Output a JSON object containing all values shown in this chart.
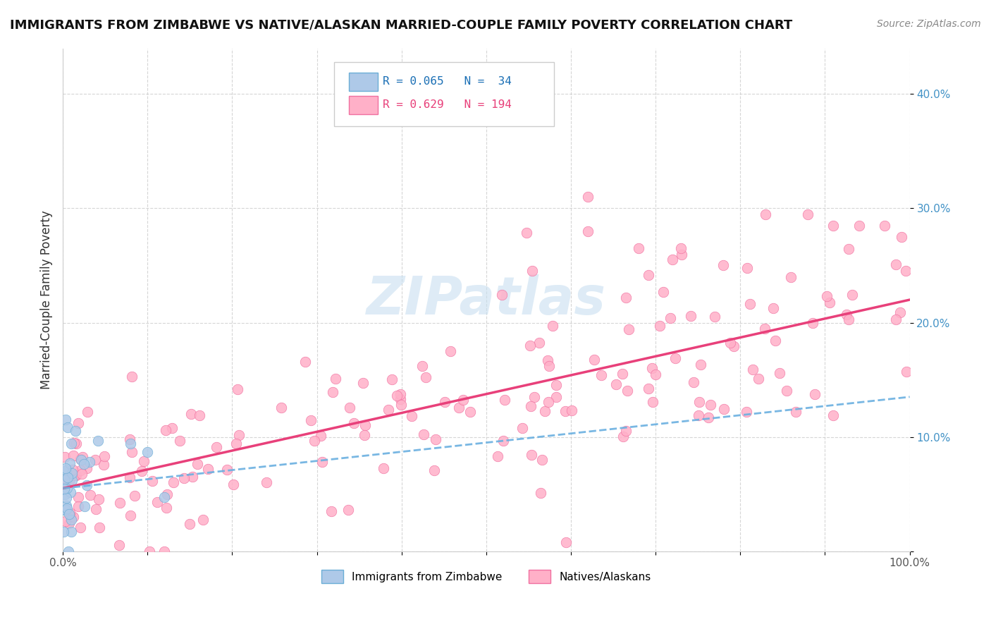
{
  "title": "IMMIGRANTS FROM ZIMBABWE VS NATIVE/ALASKAN MARRIED-COUPLE FAMILY POVERTY CORRELATION CHART",
  "source": "Source: ZipAtlas.com",
  "ylabel": "Married-Couple Family Poverty",
  "xlim": [
    0,
    1.0
  ],
  "ylim": [
    0,
    0.44
  ],
  "color_blue_fill": "#aec9e8",
  "color_blue_edge": "#6baed6",
  "color_pink_fill": "#ffb0c8",
  "color_pink_edge": "#f070a0",
  "color_line_blue": "#6ab0e0",
  "color_line_pink": "#e8407a",
  "watermark_color": "#c8dff0",
  "legend_r1": "R = 0.065",
  "legend_n1": "N =  34",
  "legend_r2": "R = 0.629",
  "legend_n2": "N = 194",
  "legend_text_color": "#1a6fb5",
  "legend_text_color2": "#e8407a",
  "title_fontsize": 13,
  "source_fontsize": 10,
  "tick_fontsize": 11,
  "blue_line_intercept": 0.055,
  "blue_line_slope": 0.08,
  "pink_line_intercept": 0.055,
  "pink_line_slope": 0.165
}
